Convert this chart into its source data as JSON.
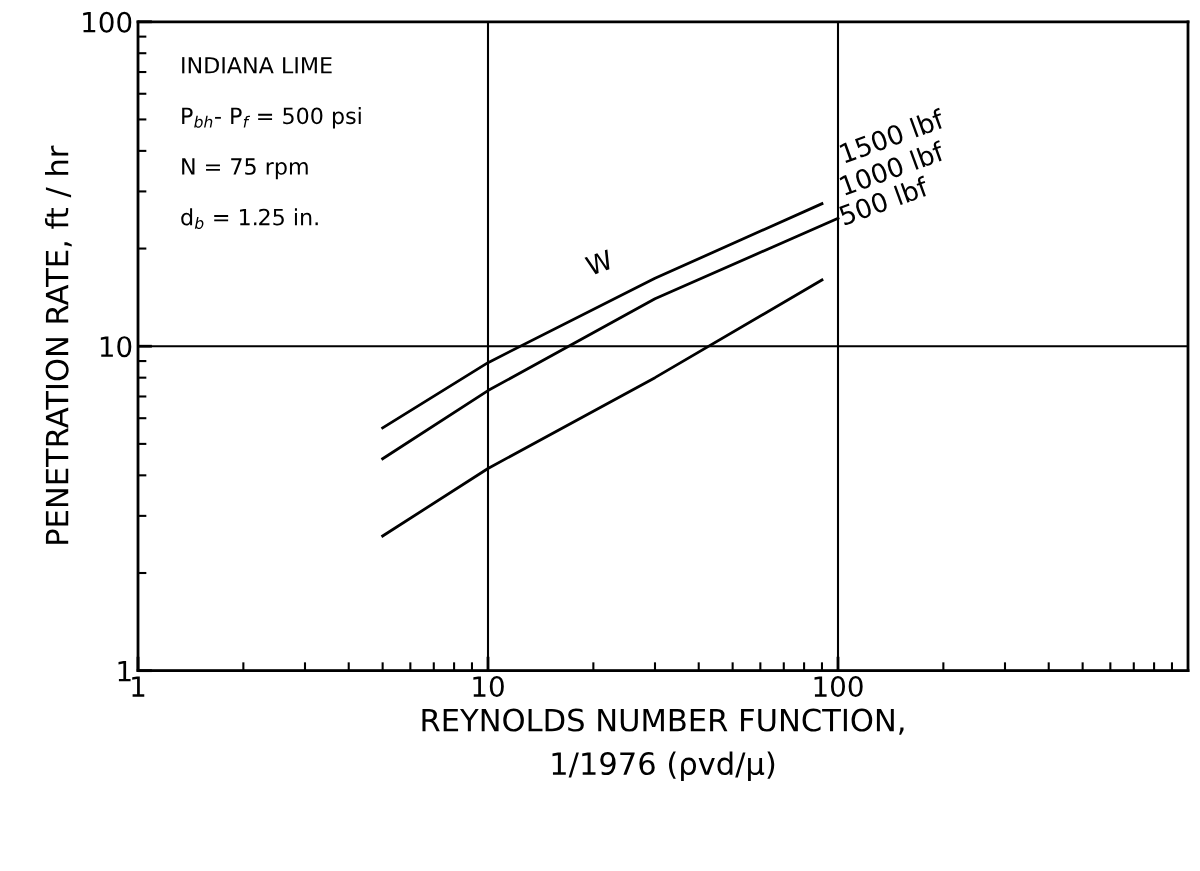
{
  "chart_data": {
    "type": "line",
    "ylabel": "PENETRATION RATE, ft / hr",
    "xlabel": "REYNOLDS NUMBER FUNCTION,\n1/1976 (ρvd/μ)",
    "log": "xy",
    "grid": true,
    "legend": false,
    "marker": "none",
    "line_style": "solid",
    "xlim": [
      1,
      1000
    ],
    "xticks": [
      1,
      10,
      100
    ],
    "ylim": [
      1,
      100
    ],
    "yticks": [
      1,
      10,
      100
    ],
    "series": [
      {
        "name": "1500 lbf",
        "color": "#000000",
        "x": [
          5,
          10,
          30,
          90
        ],
        "values": [
          5.6,
          8.9,
          16.2,
          27.5
        ]
      },
      {
        "name": "1000 lbf",
        "color": "#000000",
        "x": [
          5,
          10,
          30,
          100
        ],
        "values": [
          4.5,
          7.3,
          14,
          24.8
        ]
      },
      {
        "name": "500 lbf",
        "color": "#000000",
        "x": [
          5,
          10,
          30,
          90
        ],
        "values": [
          2.6,
          4.2,
          8,
          16
        ]
      }
    ],
    "annotations": [
      "INDIANA LIME",
      "P$_{bh}$- P$_{f}$ = 500 psi",
      "N = 75 rpm",
      "d$_{b}$ = 1.25 in.",
      "W"
    ]
  }
}
